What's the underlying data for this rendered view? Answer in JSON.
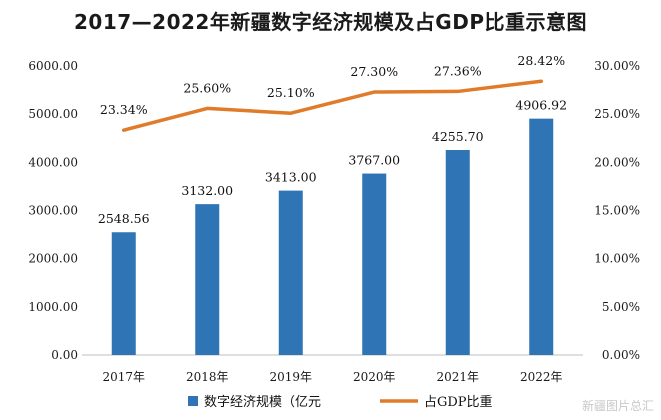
{
  "title": "2017—2022年新疆数字经济规模及占GDP比重示意图",
  "chart_data": {
    "type": "bar",
    "title": "2017—2022年新疆数字经济规模及占GDP比重示意图",
    "categories": [
      "2017年",
      "2018年",
      "2019年",
      "2020年",
      "2021年",
      "2022年"
    ],
    "series": [
      {
        "name": "数字经济规模（亿元",
        "type": "bar",
        "axis": "left",
        "color": "#2f74b5",
        "values": [
          2548.56,
          3132.0,
          3413.0,
          3767.0,
          4255.7,
          4906.92
        ],
        "labels": [
          "2548.56",
          "3132.00",
          "3413.00",
          "3767.00",
          "4255.70",
          "4906.92"
        ]
      },
      {
        "name": "占GDP比重",
        "type": "line",
        "axis": "right",
        "color": "#e07b2a",
        "values": [
          23.34,
          25.6,
          25.1,
          27.3,
          27.36,
          28.42
        ],
        "labels": [
          "23.34%",
          "25.60%",
          "25.10%",
          "27.30%",
          "27.36%",
          "28.42%"
        ]
      }
    ],
    "y_left": {
      "range": [
        0,
        6000
      ],
      "ticks": [
        0,
        1000,
        2000,
        3000,
        4000,
        5000,
        6000
      ],
      "tick_labels": [
        "0.00",
        "1000.00",
        "2000.00",
        "3000.00",
        "4000.00",
        "5000.00",
        "6000.00"
      ]
    },
    "y_right": {
      "range": [
        0,
        30
      ],
      "ticks": [
        0,
        5,
        10,
        15,
        20,
        25,
        30
      ],
      "tick_labels": [
        "0.00%",
        "5.00%",
        "10.00%",
        "15.00%",
        "20.00%",
        "25.00%",
        "30.00%"
      ]
    },
    "grid": false,
    "legend_position": "bottom"
  },
  "watermark": "新疆图片总汇"
}
